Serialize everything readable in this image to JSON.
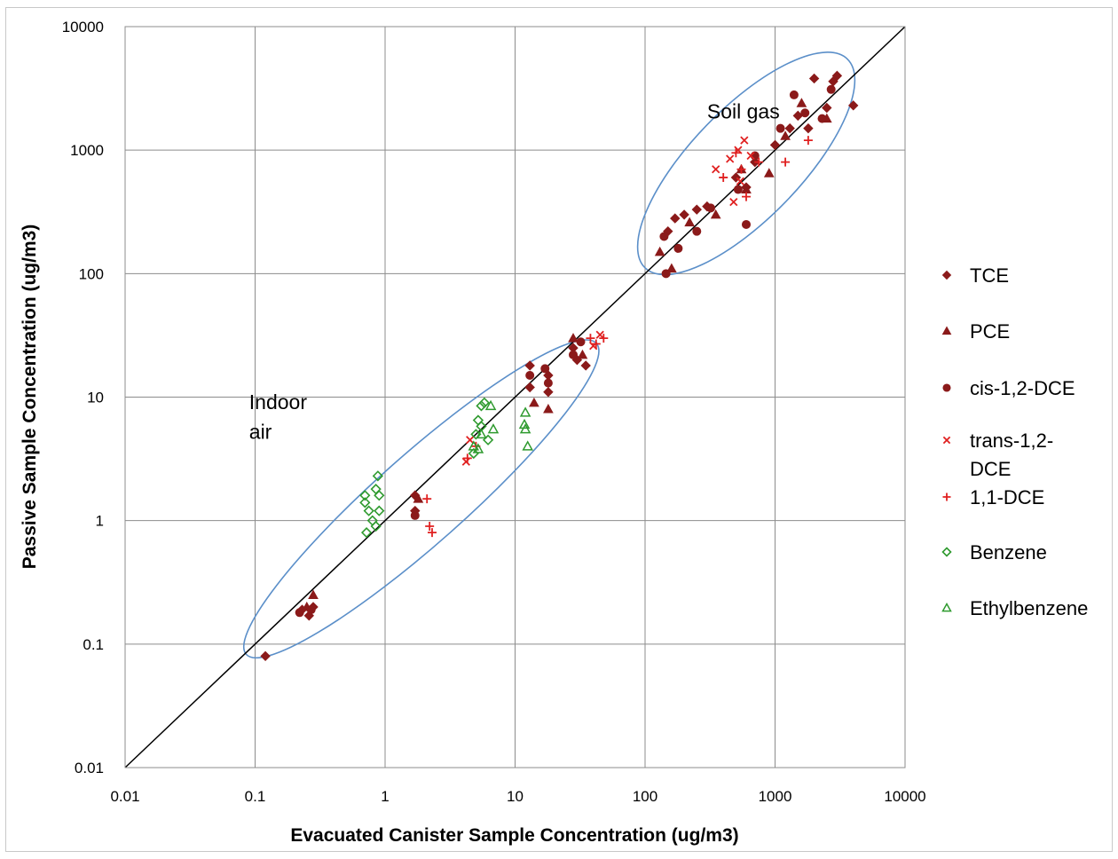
{
  "chart_data": {
    "type": "scatter",
    "xlabel": "Evacuated Canister Sample Concentration (ug/m3)",
    "ylabel": "Passive Sample Concentration (ug/m3)",
    "xscale": "log",
    "yscale": "log",
    "xlim": [
      0.01,
      10000
    ],
    "ylim": [
      0.01,
      10000
    ],
    "x_ticks": [
      "0.01",
      "0.1",
      "1",
      "10",
      "100",
      "1000",
      "10000"
    ],
    "y_ticks": [
      "0.01",
      "0.1",
      "1",
      "10",
      "100",
      "1000",
      "10000"
    ],
    "grid": true,
    "legend_position": "right",
    "reference_line": "1:1",
    "annotations": [
      {
        "text": "Soil gas",
        "x": 300,
        "y": 1800
      },
      {
        "text": "Indoor",
        "x": 0.09,
        "y": 8
      },
      {
        "text": "air",
        "x": 0.09,
        "y": 4.6
      }
    ],
    "ellipses": [
      {
        "region": "soil-gas",
        "center": [
          600,
          780
        ],
        "from": [
          100,
          110
        ],
        "to": [
          3600,
          5400
        ]
      },
      {
        "region": "indoor-air",
        "center": [
          1.9,
          1.5
        ],
        "from": [
          0.085,
          0.085
        ],
        "to": [
          42,
          28
        ]
      }
    ],
    "series": [
      {
        "name": "TCE",
        "marker": "diamond",
        "color": "#8b1a1a",
        "points": [
          [
            0.12,
            0.08
          ],
          [
            0.23,
            0.19
          ],
          [
            0.26,
            0.17
          ],
          [
            0.28,
            0.2
          ],
          [
            1.7,
            1.6
          ],
          [
            1.7,
            1.2
          ],
          [
            13,
            18
          ],
          [
            13,
            12
          ],
          [
            18,
            15
          ],
          [
            18,
            11
          ],
          [
            28,
            25
          ],
          [
            30,
            20
          ],
          [
            35,
            18
          ],
          [
            150,
            220
          ],
          [
            170,
            280
          ],
          [
            200,
            300
          ],
          [
            250,
            330
          ],
          [
            300,
            350
          ],
          [
            500,
            600
          ],
          [
            600,
            500
          ],
          [
            700,
            800
          ],
          [
            1000,
            1100
          ],
          [
            1300,
            1500
          ],
          [
            1500,
            1900
          ],
          [
            1800,
            1500
          ],
          [
            2000,
            3800
          ],
          [
            2500,
            2200
          ],
          [
            2800,
            3600
          ],
          [
            3000,
            4000
          ],
          [
            4000,
            2300
          ]
        ]
      },
      {
        "name": "PCE",
        "marker": "triangle",
        "color": "#8b1a1a",
        "points": [
          [
            0.28,
            0.25
          ],
          [
            0.25,
            0.2
          ],
          [
            1.8,
            1.5
          ],
          [
            14,
            9
          ],
          [
            18,
            8
          ],
          [
            28,
            30
          ],
          [
            33,
            22
          ],
          [
            130,
            150
          ],
          [
            160,
            110
          ],
          [
            220,
            260
          ],
          [
            350,
            300
          ],
          [
            550,
            700
          ],
          [
            600,
            480
          ],
          [
            900,
            650
          ],
          [
            1200,
            1300
          ],
          [
            1600,
            2400
          ],
          [
            2500,
            1800
          ]
        ]
      },
      {
        "name": "cis-1,2-DCE",
        "marker": "circle",
        "color": "#8b1a1a",
        "points": [
          [
            0.22,
            0.18
          ],
          [
            0.27,
            0.19
          ],
          [
            1.7,
            1.1
          ],
          [
            13,
            15
          ],
          [
            17,
            17
          ],
          [
            18,
            13
          ],
          [
            28,
            22
          ],
          [
            32,
            28
          ],
          [
            140,
            200
          ],
          [
            145,
            100
          ],
          [
            180,
            160
          ],
          [
            250,
            220
          ],
          [
            320,
            340
          ],
          [
            520,
            480
          ],
          [
            600,
            250
          ],
          [
            700,
            900
          ],
          [
            1100,
            1500
          ],
          [
            1400,
            2800
          ],
          [
            1700,
            2000
          ],
          [
            2300,
            1800
          ],
          [
            2700,
            3100
          ]
        ]
      },
      {
        "name": "trans-1,2-DCE",
        "marker": "x",
        "color": "#e02020",
        "points": [
          [
            4.2,
            3.0
          ],
          [
            4.5,
            4.5
          ],
          [
            40,
            26
          ],
          [
            45,
            32
          ],
          [
            350,
            700
          ],
          [
            450,
            850
          ],
          [
            520,
            1000
          ],
          [
            580,
            1200
          ],
          [
            480,
            380
          ],
          [
            650,
            900
          ],
          [
            540,
            560
          ]
        ]
      },
      {
        "name": "1,1-DCE",
        "marker": "plus",
        "color": "#e02020",
        "points": [
          [
            2.1,
            1.5
          ],
          [
            2.2,
            0.9
          ],
          [
            2.3,
            0.8
          ],
          [
            4.3,
            3.2
          ],
          [
            5,
            4
          ],
          [
            38,
            30
          ],
          [
            48,
            30
          ],
          [
            42,
            27
          ],
          [
            400,
            600
          ],
          [
            500,
            950
          ],
          [
            550,
            700
          ],
          [
            600,
            420
          ],
          [
            750,
            800
          ],
          [
            1200,
            800
          ],
          [
            1800,
            1200
          ]
        ]
      },
      {
        "name": "Benzene",
        "marker": "diamond-open",
        "color": "#2e9a2e",
        "points": [
          [
            0.7,
            1.6
          ],
          [
            0.7,
            1.4
          ],
          [
            0.72,
            0.8
          ],
          [
            0.75,
            1.2
          ],
          [
            0.8,
            1.0
          ],
          [
            0.85,
            1.8
          ],
          [
            0.85,
            0.9
          ],
          [
            0.88,
            2.3
          ],
          [
            0.9,
            1.6
          ],
          [
            0.9,
            1.2
          ],
          [
            4.8,
            3.5
          ],
          [
            5,
            5
          ],
          [
            5.2,
            6.5
          ],
          [
            5.5,
            8.5
          ],
          [
            5.8,
            9.0
          ],
          [
            6.2,
            4.5
          ],
          [
            5.5,
            5.8
          ]
        ]
      },
      {
        "name": "Ethylbenzene",
        "marker": "triangle-open",
        "color": "#2e9a2e",
        "points": [
          [
            4.8,
            4.0
          ],
          [
            5.2,
            3.8
          ],
          [
            5.5,
            5.0
          ],
          [
            6.5,
            8.5
          ],
          [
            6.8,
            5.5
          ],
          [
            12,
            7.5
          ],
          [
            12,
            5.5
          ],
          [
            12.5,
            4.0
          ],
          [
            11.8,
            6.0
          ]
        ]
      }
    ]
  }
}
